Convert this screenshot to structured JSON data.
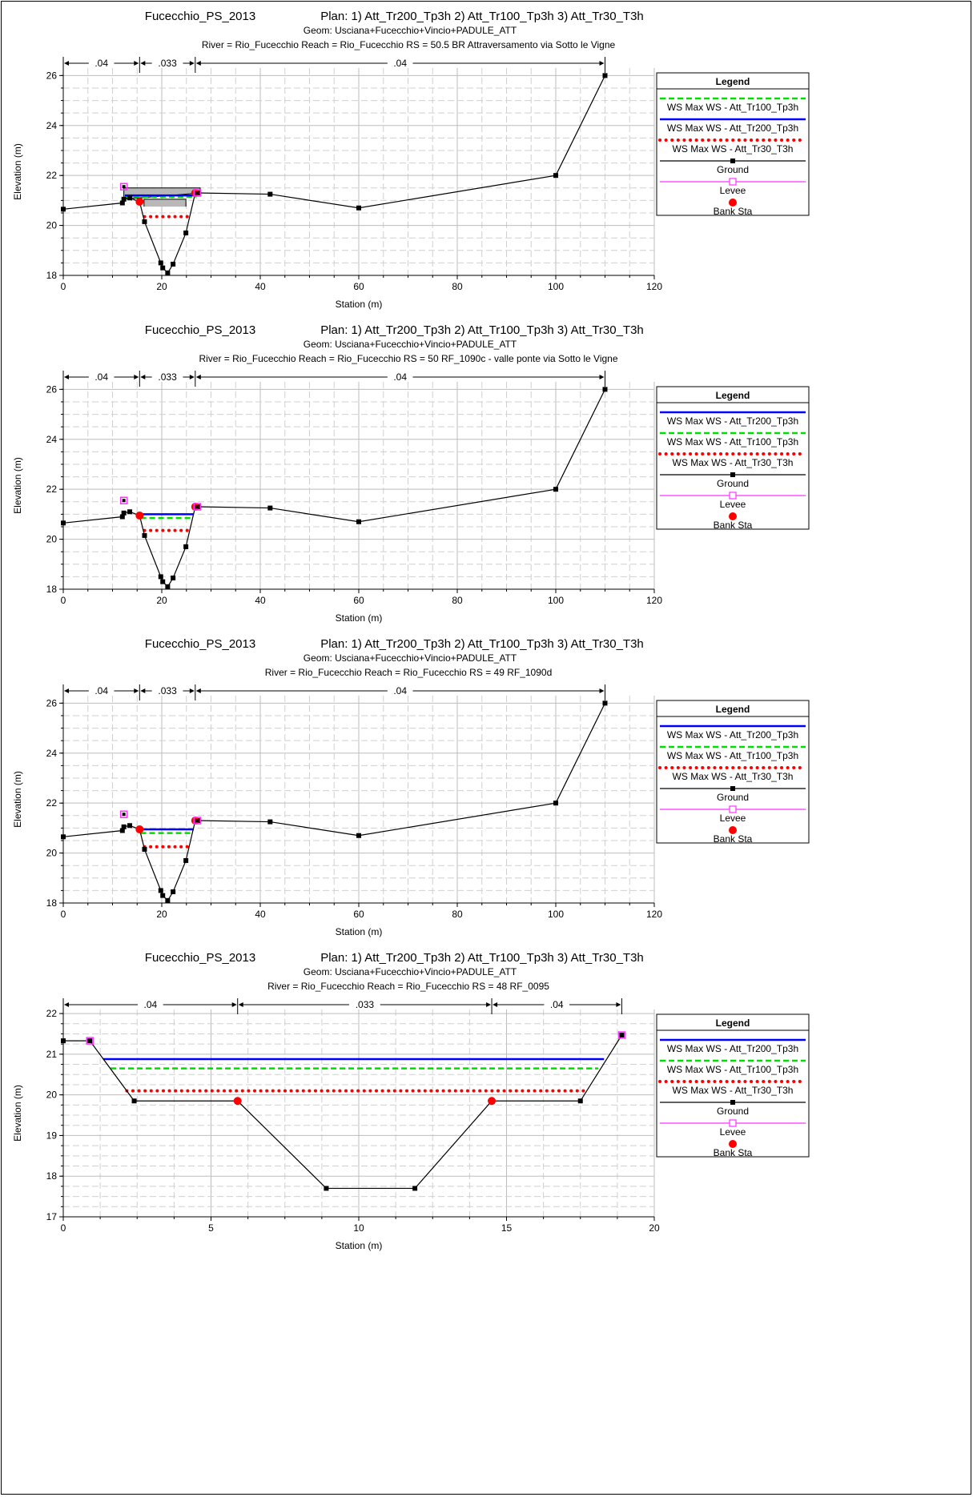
{
  "common": {
    "xlabel": "Station (m)",
    "ylabel": "Elevation (m)",
    "legend_title": "Legend",
    "project": "Fucecchio_PS_2013",
    "plan_line": "Plan:     1) Att_Tr200_Tp3h    2) Att_Tr100_Tp3h    3) Att_Tr30_T3h",
    "geom_line": "Geom: Usciana+Fucecchio+Vincio+PADULE_ATT"
  },
  "chart_data": [
    {
      "type": "line",
      "title": "Fucecchio_PS_2013",
      "subtitle_river": "River = Rio_Fucecchio   Reach = Rio_Fucecchio      RS = 50.5    BR  Attraversamento via Sotto le Vigne",
      "xlabel": "Station (m)",
      "ylabel": "Elevation (m)",
      "xlim": [
        0,
        120
      ],
      "ylim": [
        18,
        26.3
      ],
      "xticks": [
        0,
        20,
        40,
        60,
        80,
        100,
        120
      ],
      "yticks": [
        18,
        20,
        22,
        24,
        26
      ],
      "grid": true,
      "legend_position": "right",
      "legend": [
        "WS Max WS - Att_Tr100_Tp3h",
        "WS Max WS - Att_Tr200_Tp3h",
        "WS Max WS - Att_Tr30_T3h",
        "Ground",
        "Levee",
        "Bank Sta"
      ],
      "legend_styles": [
        "green",
        "blue",
        "red",
        "ground",
        "levee",
        "bank"
      ],
      "manning": [
        {
          "from": 0,
          "to": 15.5,
          "label": ".04"
        },
        {
          "from": 15.5,
          "to": 26.8,
          "label": ".033"
        },
        {
          "from": 26.8,
          "to": 110,
          "label": ".04"
        }
      ],
      "ground": [
        [
          0,
          20.65
        ],
        [
          12,
          20.9
        ],
        [
          12.3,
          21.05
        ],
        [
          13.5,
          21.1
        ],
        [
          15.5,
          20.95
        ],
        [
          16.5,
          20.15
        ],
        [
          19.8,
          18.5
        ],
        [
          20.2,
          18.3
        ],
        [
          21.2,
          18.1
        ],
        [
          22.3,
          18.45
        ],
        [
          24.9,
          19.7
        ],
        [
          26.8,
          21.3
        ],
        [
          27.5,
          21.3
        ],
        [
          42,
          21.25
        ],
        [
          60,
          20.7
        ],
        [
          100,
          22
        ],
        [
          110,
          26
        ]
      ],
      "levees": [
        [
          12.3,
          21.55
        ],
        [
          27.2,
          21.3
        ]
      ],
      "bank_sta": [
        [
          15.5,
          20.95
        ],
        [
          26.8,
          21.3
        ]
      ],
      "ws": [
        {
          "name": "WS Max WS - Att_Tr200_Tp3h",
          "style": "blue",
          "elev": 21.2,
          "from": 12.5,
          "to": 27
        },
        {
          "name": "WS Max WS - Att_Tr100_Tp3h",
          "style": "green",
          "elev": 21.15,
          "from": 12.5,
          "to": 27
        },
        {
          "name": "WS Max WS - Att_Tr30_T3h",
          "style": "red",
          "elev": 20.35,
          "from": 16.5,
          "to": 25.8
        }
      ],
      "bridge": {
        "deck": [
          [
            12.3,
            21.5
          ],
          [
            27.8,
            21.5
          ],
          [
            27.8,
            21.3
          ],
          [
            12.3,
            21.05
          ]
        ],
        "opening": [
          [
            16.4,
            20.75
          ],
          [
            16.4,
            21.05
          ],
          [
            24.9,
            21.05
          ],
          [
            24.9,
            20.75
          ]
        ]
      }
    },
    {
      "type": "line",
      "title": "Fucecchio_PS_2013",
      "subtitle_river": "River = Rio_Fucecchio   Reach = Rio_Fucecchio      RS = 50   RF_1090c - valle ponte via Sotto le Vigne",
      "xlabel": "Station (m)",
      "ylabel": "Elevation (m)",
      "xlim": [
        0,
        120
      ],
      "ylim": [
        18,
        26.3
      ],
      "xticks": [
        0,
        20,
        40,
        60,
        80,
        100,
        120
      ],
      "yticks": [
        18,
        20,
        22,
        24,
        26
      ],
      "grid": true,
      "legend_position": "right",
      "legend": [
        "WS Max WS - Att_Tr200_Tp3h",
        "WS Max WS - Att_Tr100_Tp3h",
        "WS Max WS - Att_Tr30_T3h",
        "Ground",
        "Levee",
        "Bank Sta"
      ],
      "legend_styles": [
        "blue",
        "green",
        "red",
        "ground",
        "levee",
        "bank"
      ],
      "manning": [
        {
          "from": 0,
          "to": 15.5,
          "label": ".04"
        },
        {
          "from": 15.5,
          "to": 26.8,
          "label": ".033"
        },
        {
          "from": 26.8,
          "to": 110,
          "label": ".04"
        }
      ],
      "ground": [
        [
          0,
          20.65
        ],
        [
          12,
          20.9
        ],
        [
          12.3,
          21.05
        ],
        [
          13.5,
          21.1
        ],
        [
          15.5,
          20.95
        ],
        [
          16.5,
          20.15
        ],
        [
          19.8,
          18.5
        ],
        [
          20.2,
          18.3
        ],
        [
          21.2,
          18.1
        ],
        [
          22.3,
          18.45
        ],
        [
          24.9,
          19.7
        ],
        [
          26.8,
          21.3
        ],
        [
          27.5,
          21.3
        ],
        [
          42,
          21.25
        ],
        [
          60,
          20.7
        ],
        [
          100,
          22
        ],
        [
          110,
          26
        ]
      ],
      "levees": [
        [
          12.3,
          21.55
        ],
        [
          27.2,
          21.3
        ]
      ],
      "bank_sta": [
        [
          15.5,
          20.95
        ],
        [
          26.8,
          21.3
        ]
      ],
      "ws": [
        {
          "name": "WS Max WS - Att_Tr200_Tp3h",
          "style": "blue",
          "elev": 21.0,
          "from": 15.5,
          "to": 26.5
        },
        {
          "name": "WS Max WS - Att_Tr100_Tp3h",
          "style": "green",
          "elev": 20.85,
          "from": 15.7,
          "to": 26.3
        },
        {
          "name": "WS Max WS - Att_Tr30_T3h",
          "style": "red",
          "elev": 20.35,
          "from": 16.5,
          "to": 25.8
        }
      ]
    },
    {
      "type": "line",
      "title": "Fucecchio_PS_2013",
      "subtitle_river": "River = Rio_Fucecchio   Reach = Rio_Fucecchio      RS = 49   RF_1090d",
      "xlabel": "Station (m)",
      "ylabel": "Elevation (m)",
      "xlim": [
        0,
        120
      ],
      "ylim": [
        18,
        26.3
      ],
      "xticks": [
        0,
        20,
        40,
        60,
        80,
        100,
        120
      ],
      "yticks": [
        18,
        20,
        22,
        24,
        26
      ],
      "grid": true,
      "legend_position": "right",
      "legend": [
        "WS Max WS - Att_Tr200_Tp3h",
        "WS Max WS - Att_Tr100_Tp3h",
        "WS Max WS - Att_Tr30_T3h",
        "Ground",
        "Levee",
        "Bank Sta"
      ],
      "legend_styles": [
        "blue",
        "green",
        "red",
        "ground",
        "levee",
        "bank"
      ],
      "manning": [
        {
          "from": 0,
          "to": 15.5,
          "label": ".04"
        },
        {
          "from": 15.5,
          "to": 26.8,
          "label": ".033"
        },
        {
          "from": 26.8,
          "to": 110,
          "label": ".04"
        }
      ],
      "ground": [
        [
          0,
          20.65
        ],
        [
          12,
          20.9
        ],
        [
          12.3,
          21.05
        ],
        [
          13.5,
          21.1
        ],
        [
          15.5,
          20.95
        ],
        [
          16.5,
          20.15
        ],
        [
          19.8,
          18.5
        ],
        [
          20.2,
          18.3
        ],
        [
          21.2,
          18.1
        ],
        [
          22.3,
          18.45
        ],
        [
          24.9,
          19.7
        ],
        [
          26.8,
          21.3
        ],
        [
          27.5,
          21.3
        ],
        [
          42,
          21.25
        ],
        [
          60,
          20.7
        ],
        [
          100,
          22
        ],
        [
          110,
          26
        ]
      ],
      "levees": [
        [
          12.3,
          21.55
        ],
        [
          27.2,
          21.3
        ]
      ],
      "bank_sta": [
        [
          15.5,
          20.95
        ],
        [
          26.8,
          21.3
        ]
      ],
      "ws": [
        {
          "name": "WS Max WS - Att_Tr200_Tp3h",
          "style": "blue",
          "elev": 20.95,
          "from": 15.5,
          "to": 26.5
        },
        {
          "name": "WS Max WS - Att_Tr100_Tp3h",
          "style": "green",
          "elev": 20.8,
          "from": 15.7,
          "to": 26.3
        },
        {
          "name": "WS Max WS - Att_Tr30_T3h",
          "style": "red",
          "elev": 20.25,
          "from": 16.5,
          "to": 25.8
        }
      ]
    },
    {
      "type": "line",
      "title": "Fucecchio_PS_2013",
      "subtitle_river": "River = Rio_Fucecchio   Reach = Rio_Fucecchio      RS = 48   RF_0095",
      "xlabel": "Station (m)",
      "ylabel": "Elevation (m)",
      "xlim": [
        0,
        20
      ],
      "ylim": [
        17,
        22.1
      ],
      "xticks": [
        0,
        5,
        10,
        15,
        20
      ],
      "yticks": [
        17,
        18,
        19,
        20,
        21,
        22
      ],
      "grid": true,
      "legend_position": "right",
      "legend": [
        "WS Max WS - Att_Tr200_Tp3h",
        "WS Max WS - Att_Tr100_Tp3h",
        "WS Max WS - Att_Tr30_T3h",
        "Ground",
        "Levee",
        "Bank Sta"
      ],
      "legend_styles": [
        "blue",
        "green",
        "red",
        "ground",
        "levee",
        "bank"
      ],
      "manning": [
        {
          "from": 0,
          "to": 5.9,
          "label": ".04"
        },
        {
          "from": 5.9,
          "to": 14.5,
          "label": ".033"
        },
        {
          "from": 14.5,
          "to": 18.9,
          "label": ".04"
        }
      ],
      "ground": [
        [
          0,
          21.33
        ],
        [
          0.9,
          21.33
        ],
        [
          2.4,
          19.85
        ],
        [
          5.9,
          19.85
        ],
        [
          8.9,
          17.7
        ],
        [
          11.9,
          17.7
        ],
        [
          14.5,
          19.85
        ],
        [
          17.5,
          19.85
        ],
        [
          18.9,
          21.47
        ]
      ],
      "levees": [
        [
          0.9,
          21.33
        ],
        [
          18.9,
          21.47
        ]
      ],
      "bank_sta": [
        [
          5.9,
          19.85
        ],
        [
          14.5,
          19.85
        ]
      ],
      "ws": [
        {
          "name": "WS Max WS - Att_Tr200_Tp3h",
          "style": "blue",
          "elev": 20.88,
          "from": 1.35,
          "to": 18.3
        },
        {
          "name": "WS Max WS - Att_Tr100_Tp3h",
          "style": "green",
          "elev": 20.65,
          "from": 1.6,
          "to": 18.1
        },
        {
          "name": "WS Max WS - Att_Tr30_T3h",
          "style": "red",
          "elev": 20.1,
          "from": 2.15,
          "to": 17.7
        }
      ]
    }
  ]
}
